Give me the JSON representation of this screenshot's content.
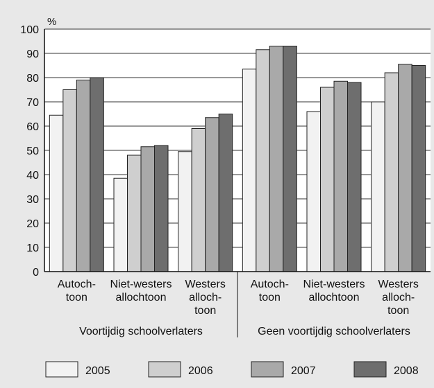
{
  "chart_data": {
    "type": "bar",
    "unit_label": "%",
    "ylim": [
      0,
      100
    ],
    "yticks": [
      0,
      10,
      20,
      30,
      40,
      50,
      60,
      70,
      80,
      90,
      100
    ],
    "grid": true,
    "legend_position": "bottom",
    "groups": [
      {
        "label": "Voortijdig schoolverlaters",
        "categories": [
          {
            "label_lines": [
              "Autoch-",
              "toon"
            ]
          },
          {
            "label_lines": [
              "Niet-westers",
              "allochtoon"
            ]
          },
          {
            "label_lines": [
              "Westers",
              "alloch-",
              "toon"
            ]
          }
        ]
      },
      {
        "label": "Geen voortijdig schoolverlaters",
        "categories": [
          {
            "label_lines": [
              "Autoch-",
              "toon"
            ]
          },
          {
            "label_lines": [
              "Niet-westers",
              "allochtoon"
            ]
          },
          {
            "label_lines": [
              "Westers",
              "alloch-",
              "toon"
            ]
          }
        ]
      }
    ],
    "series": [
      {
        "name": "2005",
        "color": "#f2f2f2",
        "values": [
          64.5,
          38.5,
          49.5,
          83.5,
          66,
          70
        ]
      },
      {
        "name": "2006",
        "color": "#cfcfcf",
        "values": [
          75,
          48,
          59,
          91.5,
          76,
          82
        ]
      },
      {
        "name": "2007",
        "color": "#a9a9a9",
        "values": [
          79,
          51.5,
          63.5,
          93,
          78.5,
          85.5
        ]
      },
      {
        "name": "2008",
        "color": "#6e6e6e",
        "values": [
          80,
          52,
          65,
          93,
          78,
          85
        ]
      }
    ]
  }
}
